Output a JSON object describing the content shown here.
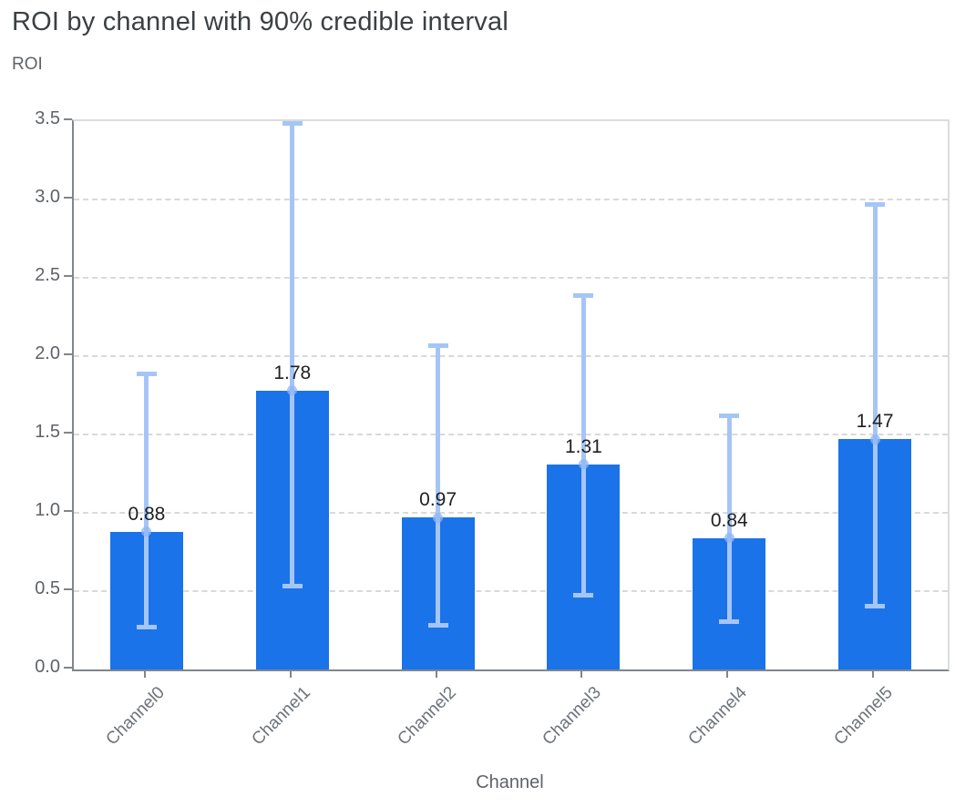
{
  "header": {
    "title": "ROI by channel with 90% credible interval"
  },
  "chart_data": {
    "type": "bar",
    "title": "ROI by channel with 90% credible interval",
    "xlabel": "Channel",
    "ylabel": "ROI",
    "categories": [
      "Channel0",
      "Channel1",
      "Channel2",
      "Channel3",
      "Channel4",
      "Channel5"
    ],
    "values": [
      0.88,
      1.78,
      0.97,
      1.31,
      0.84,
      1.47
    ],
    "value_labels": [
      "0.88",
      "1.78",
      "0.97",
      "1.31",
      "0.84",
      "1.47"
    ],
    "ci_low": [
      0.27,
      0.53,
      0.28,
      0.47,
      0.3,
      0.4
    ],
    "ci_high": [
      1.89,
      3.49,
      2.07,
      2.39,
      1.62,
      2.97
    ],
    "ci_level": "90%",
    "ylim": [
      0.0,
      3.5
    ],
    "y_ticks": [
      "0.0",
      "0.5",
      "1.0",
      "1.5",
      "2.0",
      "2.5",
      "3.0",
      "3.5"
    ],
    "grid": "dashed horizontal",
    "legend": "none",
    "colors": {
      "bar": "#1a73e8",
      "error_bar": "#a6c5f7",
      "mean_dot": "#8fb5f4",
      "gridline": "#d9d9d9",
      "axis_line": "#80868b",
      "title_text": "#3c4043",
      "muted_text": "#5f6368",
      "value_text": "#1f1f1f"
    }
  }
}
